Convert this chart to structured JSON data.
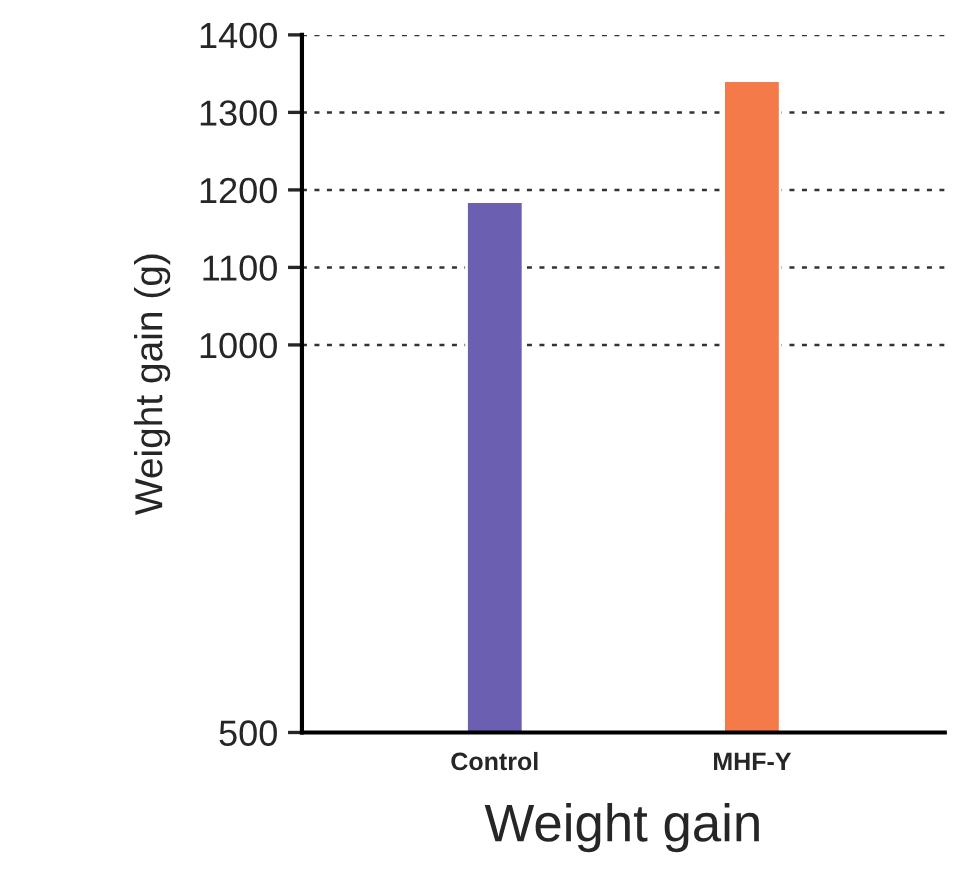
{
  "chart_data": {
    "type": "bar",
    "xlabel": "Weight gain",
    "ylabel": "Weight gain (g)",
    "categories": [
      "Control",
      "MHF-Y"
    ],
    "values": [
      1185,
      1341
    ],
    "colors": [
      "#6a5fb0",
      "#f47a4a"
    ],
    "ylim": [
      500,
      1400
    ],
    "yticks": [
      500,
      1000,
      1100,
      1200,
      1300,
      1400
    ],
    "grid": "y"
  }
}
